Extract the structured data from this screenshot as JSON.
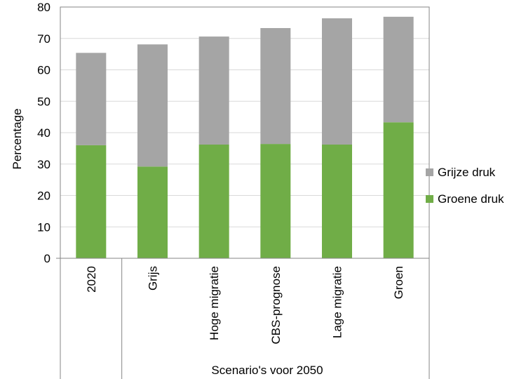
{
  "chart_data": {
    "type": "bar",
    "stacked": true,
    "categories": [
      "2020",
      "Grijs",
      "Hoge migratie",
      "CBS-prognose",
      "Lage migratie",
      "Groen"
    ],
    "category_group_label": "Scenario's voor 2050",
    "series": [
      {
        "name": "Groene druk",
        "color": "#70ad47",
        "values": [
          36.0,
          29.2,
          36.2,
          36.4,
          36.2,
          43.3
        ]
      },
      {
        "name": "Grijze druk",
        "color": "#a5a5a5",
        "values": [
          29.4,
          38.9,
          34.4,
          36.9,
          40.2,
          33.6
        ]
      }
    ],
    "ylabel": "Percentage",
    "xlabel": "",
    "ylim": [
      0,
      80
    ],
    "yticks": [
      0,
      10,
      20,
      30,
      40,
      50,
      60,
      70,
      80
    ],
    "grid": true,
    "legend_position": "right"
  }
}
